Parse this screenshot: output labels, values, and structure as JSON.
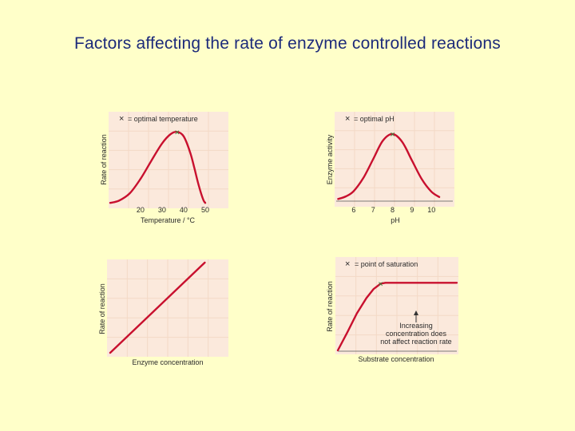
{
  "title": "Factors affecting the rate of enzyme controlled reactions",
  "colors": {
    "background": "#ffffc9",
    "title": "#1c2a7a",
    "panel_bg": "#fbe9dc",
    "curve": "#c8102e",
    "marker": "#2e8b3a"
  },
  "chart_data": [
    {
      "type": "line",
      "legend": "= optimal temperature",
      "xlabel": "Temperature / °C",
      "ylabel": "Rate of reaction",
      "xlim": [
        6,
        60
      ],
      "ylim": [
        0,
        1.08
      ],
      "xticks": [
        20,
        30,
        40,
        50
      ],
      "grid": true,
      "x": [
        6,
        10,
        15,
        20,
        25,
        30,
        34,
        37,
        40,
        43,
        45,
        47,
        49,
        50
      ],
      "y": [
        0.02,
        0.05,
        0.15,
        0.35,
        0.6,
        0.84,
        0.97,
        1.0,
        0.94,
        0.72,
        0.5,
        0.26,
        0.07,
        0.02
      ],
      "marker": {
        "symbol": "×",
        "x": 37,
        "y": 1.0
      }
    },
    {
      "type": "line",
      "legend": "= optimal pH",
      "xlabel": "pH",
      "ylabel": "Enzyme activity",
      "xlim": [
        5.1,
        11.1
      ],
      "ylim": [
        0,
        1.12
      ],
      "xticks": [
        6,
        7,
        8,
        9,
        10
      ],
      "grid": true,
      "x": [
        5.2,
        5.6,
        6,
        6.5,
        7,
        7.5,
        8,
        8.5,
        9,
        9.5,
        10,
        10.4
      ],
      "y": [
        0.02,
        0.06,
        0.14,
        0.34,
        0.62,
        0.9,
        1.0,
        0.88,
        0.6,
        0.32,
        0.13,
        0.05
      ],
      "marker": {
        "symbol": "×",
        "x": 8,
        "y": 1.0
      }
    },
    {
      "type": "line",
      "xlabel": "Enzyme concentration",
      "ylabel": "Rate of reaction",
      "xlim": [
        0,
        1
      ],
      "ylim": [
        0,
        1
      ],
      "grid": true,
      "x": [
        0,
        0.8
      ],
      "y": [
        0,
        1
      ]
    },
    {
      "type": "line",
      "legend": "= point of saturation",
      "xlabel": "Substrate concentration",
      "ylabel": "Rate of reaction",
      "xlim": [
        0,
        1
      ],
      "ylim": [
        0,
        1
      ],
      "grid": true,
      "x": [
        0,
        0.08,
        0.16,
        0.24,
        0.3,
        0.36,
        0.4,
        1.0
      ],
      "y": [
        0,
        0.2,
        0.41,
        0.58,
        0.68,
        0.74,
        0.75,
        0.75
      ],
      "marker": {
        "symbol": "×",
        "x": 0.36,
        "y": 0.74
      },
      "annotation": [
        "Increasing",
        "concentration does",
        "not affect reaction rate"
      ]
    }
  ]
}
